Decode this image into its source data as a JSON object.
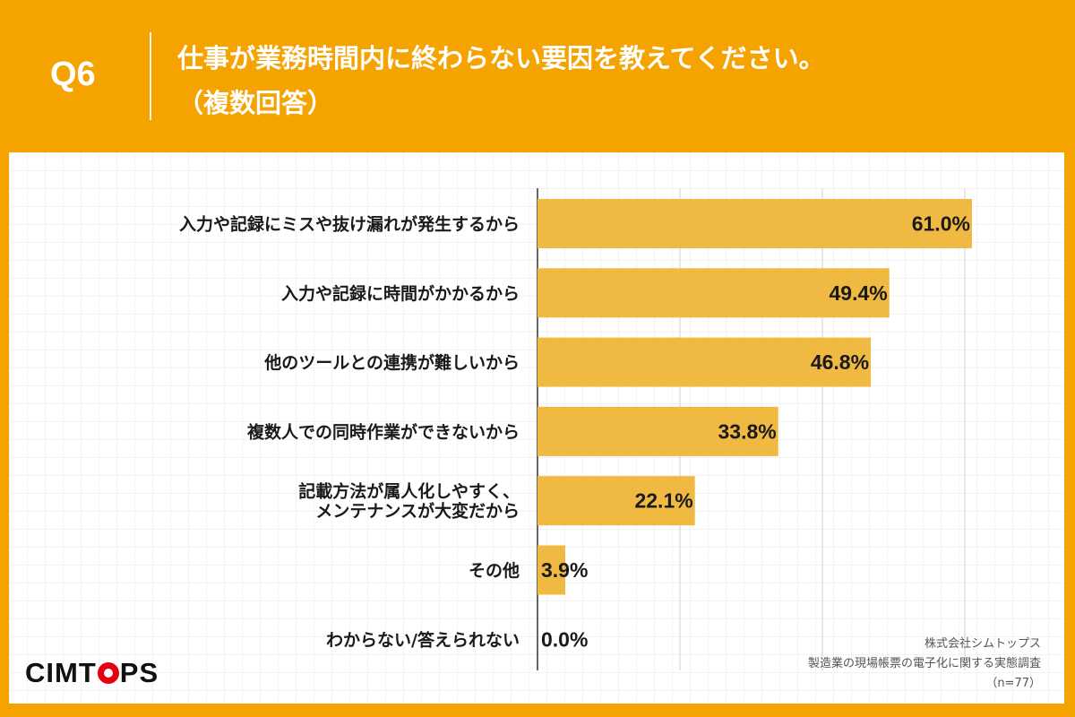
{
  "header": {
    "q_label": "Q6",
    "title_line1": "仕事が業務時間内に終わらない要因を教えてください。",
    "title_line2": "（複数回答）"
  },
  "colors": {
    "background": "#f5a300",
    "bar": "#f0b942",
    "logo_accent": "#e60012"
  },
  "chart_data": {
    "type": "bar",
    "orientation": "horizontal",
    "unit": "%",
    "xlim": [
      0,
      100
    ],
    "grid": true,
    "categories": [
      [
        "入力や記録にミスや抜け漏れが発生するから"
      ],
      [
        "入力や記録に時間がかかるから"
      ],
      [
        "他のツールとの連携が難しいから"
      ],
      [
        "複数人での同時作業ができないから"
      ],
      [
        "記載方法が属人化しやすく、",
        "メンテナンスが大変だから"
      ],
      [
        "その他"
      ],
      [
        "わからない/答えられない"
      ]
    ],
    "values": [
      61.0,
      49.4,
      46.8,
      33.8,
      22.1,
      3.9,
      0.0
    ],
    "value_labels": [
      "61.0%",
      "49.4%",
      "46.8%",
      "33.8%",
      "22.1%",
      "3.9%",
      "0.0%"
    ]
  },
  "logo": {
    "text_before": "CIMT",
    "text_after": "PS"
  },
  "source": {
    "company": "株式会社シムトップス",
    "survey": "製造業の現場帳票の電子化に関する実態調査",
    "n": "（n=77）"
  }
}
